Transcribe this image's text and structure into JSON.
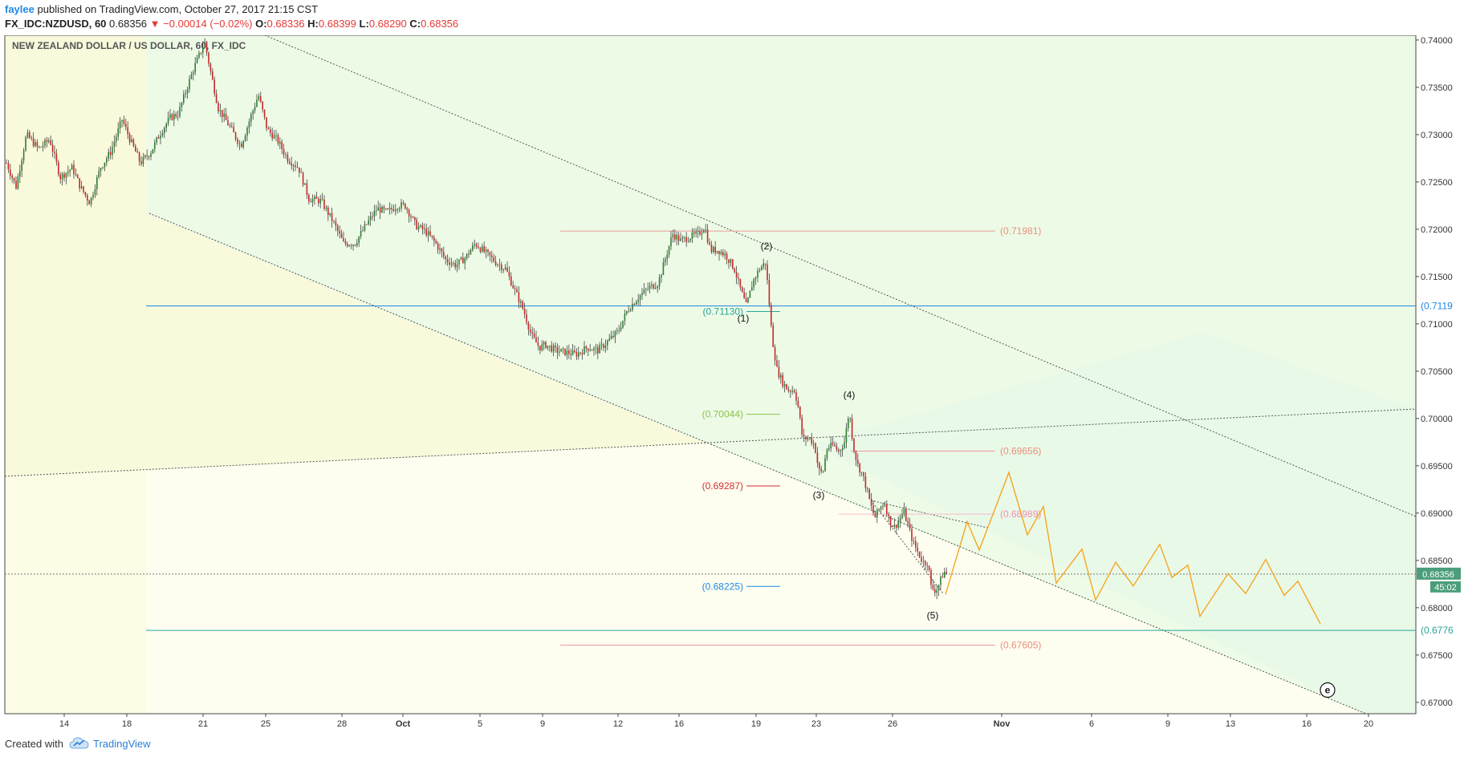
{
  "header": {
    "user": "faylee",
    "published": "published on TradingView.com, October 27, 2017 21:15 CST",
    "symbol": "FX_IDC:NZDUSD, 60",
    "last": "0.68356",
    "change": "▼ −0.00014 (−0.02%)",
    "o_label": "O:",
    "o": "0.68336",
    "h_label": "H:",
    "h": "0.68399",
    "l_label": "L:",
    "l": "0.68290",
    "c_label": "C:",
    "c": "0.68356"
  },
  "footer": {
    "created": "Created with",
    "brand": "TradingView"
  },
  "chart_data": {
    "type": "candlestick",
    "title": "NEW ZEALAND DOLLAR / US DOLLAR, 60, FX_IDC",
    "interval": "60",
    "ylim": [
      0.6688,
      0.7405
    ],
    "y_ticks": [
      0.67,
      0.675,
      0.68,
      0.685,
      0.69,
      0.695,
      0.7,
      0.705,
      0.71,
      0.715,
      0.72,
      0.725,
      0.73,
      0.735,
      0.74
    ],
    "y_tick_labels": [
      "0.67000",
      "0.67500",
      "0.68000",
      "0.68500",
      "0.69000",
      "0.69500",
      "0.70000",
      "0.70500",
      "0.71000",
      "0.71500",
      "0.72000",
      "0.72500",
      "0.73000",
      "0.73500",
      "0.74000"
    ],
    "x_ticks": [
      {
        "label": "14",
        "x": 80
      },
      {
        "label": "18",
        "x": 158
      },
      {
        "label": "21",
        "x": 253
      },
      {
        "label": "25",
        "x": 331
      },
      {
        "label": "28",
        "x": 426
      },
      {
        "label": "Oct",
        "x": 502
      },
      {
        "label": "5",
        "x": 598
      },
      {
        "label": "9",
        "x": 676
      },
      {
        "label": "12",
        "x": 770
      },
      {
        "label": "16",
        "x": 846
      },
      {
        "label": "19",
        "x": 942
      },
      {
        "label": "23",
        "x": 1017
      },
      {
        "label": "26",
        "x": 1112
      },
      {
        "label": "Nov",
        "x": 1248
      },
      {
        "label": "6",
        "x": 1360
      },
      {
        "label": "9",
        "x": 1455
      },
      {
        "label": "13",
        "x": 1533
      },
      {
        "label": "16",
        "x": 1628
      },
      {
        "label": "20",
        "x": 1705
      }
    ],
    "price_path": [
      [
        8,
        0.727
      ],
      [
        20,
        0.7245
      ],
      [
        33,
        0.73
      ],
      [
        48,
        0.7285
      ],
      [
        62,
        0.7295
      ],
      [
        75,
        0.7255
      ],
      [
        90,
        0.7265
      ],
      [
        100,
        0.7245
      ],
      [
        112,
        0.7228
      ],
      [
        125,
        0.7265
      ],
      [
        138,
        0.7282
      ],
      [
        152,
        0.7316
      ],
      [
        162,
        0.7295
      ],
      [
        175,
        0.727
      ],
      [
        188,
        0.7282
      ],
      [
        200,
        0.7302
      ],
      [
        212,
        0.7318
      ],
      [
        222,
        0.7322
      ],
      [
        240,
        0.7367
      ],
      [
        255,
        0.7398
      ],
      [
        262,
        0.7368
      ],
      [
        272,
        0.7328
      ],
      [
        285,
        0.731
      ],
      [
        300,
        0.7288
      ],
      [
        312,
        0.7318
      ],
      [
        322,
        0.7342
      ],
      [
        333,
        0.7305
      ],
      [
        345,
        0.7295
      ],
      [
        358,
        0.7275
      ],
      [
        372,
        0.7265
      ],
      [
        385,
        0.7232
      ],
      [
        400,
        0.723
      ],
      [
        415,
        0.7208
      ],
      [
        428,
        0.7185
      ],
      [
        442,
        0.7185
      ],
      [
        458,
        0.7207
      ],
      [
        470,
        0.7222
      ],
      [
        482,
        0.7218
      ],
      [
        495,
        0.7225
      ],
      [
        505,
        0.7225
      ],
      [
        518,
        0.7204
      ],
      [
        530,
        0.7198
      ],
      [
        543,
        0.7185
      ],
      [
        555,
        0.7168
      ],
      [
        568,
        0.7162
      ],
      [
        580,
        0.717
      ],
      [
        592,
        0.7185
      ],
      [
        605,
        0.7175
      ],
      [
        618,
        0.7165
      ],
      [
        630,
        0.7158
      ],
      [
        640,
        0.7138
      ],
      [
        652,
        0.7115
      ],
      [
        662,
        0.7088
      ],
      [
        672,
        0.7075
      ],
      [
        680,
        0.7078
      ],
      [
        692,
        0.7072
      ],
      [
        705,
        0.707
      ],
      [
        718,
        0.7068
      ],
      [
        732,
        0.7075
      ],
      [
        745,
        0.7072
      ],
      [
        758,
        0.7082
      ],
      [
        770,
        0.7092
      ],
      [
        782,
        0.7115
      ],
      [
        795,
        0.7128
      ],
      [
        808,
        0.7138
      ],
      [
        820,
        0.7143
      ],
      [
        830,
        0.7172
      ],
      [
        838,
        0.7195
      ],
      [
        848,
        0.7188
      ],
      [
        860,
        0.7192
      ],
      [
        870,
        0.7195
      ],
      [
        878,
        0.7203
      ],
      [
        885,
        0.7178
      ],
      [
        895,
        0.7178
      ],
      [
        905,
        0.7172
      ],
      [
        915,
        0.7158
      ],
      [
        922,
        0.7138
      ],
      [
        930,
        0.7118
      ],
      [
        938,
        0.7145
      ],
      [
        946,
        0.7158
      ],
      [
        954,
        0.7165
      ],
      [
        958,
        0.7125
      ],
      [
        962,
        0.7085
      ],
      [
        968,
        0.7052
      ],
      [
        975,
        0.7038
      ],
      [
        982,
        0.703
      ],
      [
        990,
        0.703
      ],
      [
        995,
        0.701
      ],
      [
        1000,
        0.6978
      ],
      [
        1008,
        0.698
      ],
      [
        1015,
        0.6972
      ],
      [
        1020,
        0.6945
      ],
      [
        1025,
        0.6942
      ],
      [
        1030,
        0.6968
      ],
      [
        1038,
        0.6972
      ],
      [
        1045,
        0.6965
      ],
      [
        1052,
        0.6975
      ],
      [
        1058,
        0.7008
      ],
      [
        1063,
        0.6972
      ],
      [
        1068,
        0.6952
      ],
      [
        1074,
        0.6942
      ],
      [
        1080,
        0.6925
      ],
      [
        1085,
        0.6908
      ],
      [
        1090,
        0.6895
      ],
      [
        1096,
        0.6905
      ],
      [
        1102,
        0.6912
      ],
      [
        1108,
        0.6892
      ],
      [
        1114,
        0.6885
      ],
      [
        1120,
        0.6892
      ],
      [
        1126,
        0.6902
      ],
      [
        1132,
        0.6885
      ],
      [
        1138,
        0.6868
      ],
      [
        1144,
        0.6858
      ],
      [
        1150,
        0.6848
      ],
      [
        1156,
        0.6848
      ],
      [
        1160,
        0.6822
      ],
      [
        1166,
        0.6818
      ],
      [
        1170,
        0.6825
      ],
      [
        1176,
        0.6838
      ],
      [
        1180,
        0.6836
      ]
    ],
    "projection_path": [
      [
        1178,
        0.6814
      ],
      [
        1205,
        0.6891
      ],
      [
        1220,
        0.6861
      ],
      [
        1257,
        0.6943
      ],
      [
        1280,
        0.6877
      ],
      [
        1300,
        0.6907
      ],
      [
        1316,
        0.6826
      ],
      [
        1348,
        0.6862
      ],
      [
        1365,
        0.6808
      ],
      [
        1390,
        0.6848
      ],
      [
        1412,
        0.6823
      ],
      [
        1445,
        0.6867
      ],
      [
        1460,
        0.6832
      ],
      [
        1480,
        0.6845
      ],
      [
        1495,
        0.6791
      ],
      [
        1530,
        0.6836
      ],
      [
        1552,
        0.6815
      ],
      [
        1577,
        0.6851
      ],
      [
        1600,
        0.6813
      ],
      [
        1617,
        0.6828
      ],
      [
        1645,
        0.6783
      ]
    ],
    "current_price": {
      "label": "0.68356",
      "value": 0.68356
    },
    "countdown": "45:02",
    "annotations": [
      {
        "type": "hline",
        "label": "(0.71981)",
        "y": 0.71981,
        "x1": 698,
        "x2": 1240,
        "color": "#ef9a9a",
        "text_color": "#e8907e"
      },
      {
        "type": "hline",
        "label": "(0.7119",
        "y": 0.7119,
        "x1": 182,
        "x2": 1764,
        "color": "#1e88e5",
        "text_color": "#1e88e5"
      },
      {
        "type": "hline",
        "label": "(0.71130)",
        "y": 0.7113,
        "x1": 930,
        "x2": 972,
        "color": "#26a69a",
        "text_color": "#26a69a"
      },
      {
        "type": "hline",
        "label": "(0.70044)",
        "y": 0.70044,
        "x1": 930,
        "x2": 972,
        "color": "#8bc34a",
        "text_color": "#8bc34a"
      },
      {
        "type": "hline",
        "label": "(0.69656)",
        "y": 0.69656,
        "x1": 1060,
        "x2": 1240,
        "color": "#ef9a9a",
        "text_color": "#e8907e"
      },
      {
        "type": "hline",
        "label": "(0.69287)",
        "y": 0.69287,
        "x1": 930,
        "x2": 972,
        "color": "#d32f2f",
        "text_color": "#d32f2f"
      },
      {
        "type": "hline",
        "label": "(0.68989)",
        "y": 0.68989,
        "x1": 1045,
        "x2": 1240,
        "color": "#f8bbd0",
        "text_color": "#f48fb1"
      },
      {
        "type": "hline",
        "label": "(0.68225)",
        "y": 0.68225,
        "x1": 930,
        "x2": 972,
        "color": "#1e88e5",
        "text_color": "#1e88e5"
      },
      {
        "type": "hline",
        "label": "(0.6776",
        "y": 0.6776,
        "x1": 182,
        "x2": 1764,
        "color": "#26a69a",
        "text_color": "#26a69a"
      },
      {
        "type": "hline",
        "label": "(0.67605)",
        "y": 0.67605,
        "x1": 698,
        "x2": 1240,
        "color": "#ef9a9a",
        "text_color": "#e8907e"
      }
    ],
    "wave_labels": [
      {
        "label": "(1)",
        "x": 926,
        "y": 0.7106
      },
      {
        "label": "(2)",
        "x": 955,
        "y": 0.7182
      },
      {
        "label": "(3)",
        "x": 1020,
        "y": 0.6919
      },
      {
        "label": "(4)",
        "x": 1058,
        "y": 0.7025
      },
      {
        "label": "(5)",
        "x": 1162,
        "y": 0.6792
      },
      {
        "label": "e",
        "x": 1654,
        "y": 0.6713
      }
    ]
  }
}
